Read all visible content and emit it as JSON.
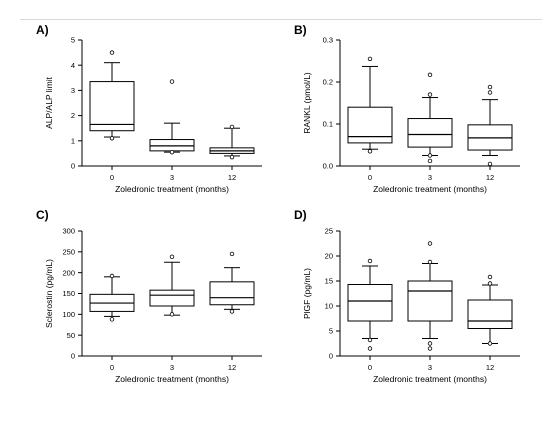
{
  "chart_data": [
    {
      "type": "box",
      "panel": "A)",
      "xlabel": "Zoledronic treatment (months)",
      "ylabel": "ALP/ALP limit",
      "categories": [
        "0",
        "3",
        "12"
      ],
      "ylim": [
        0,
        5
      ],
      "yticks": [
        "0",
        "1",
        "2",
        "3",
        "4",
        "5"
      ],
      "boxes": [
        {
          "whisker_low": 1.15,
          "q1": 1.4,
          "median": 1.65,
          "q3": 3.35,
          "whisker_high": 4.1,
          "outliers": [
            1.1,
            4.5
          ]
        },
        {
          "whisker_low": 0.55,
          "q1": 0.6,
          "median": 0.8,
          "q3": 1.05,
          "whisker_high": 1.7,
          "outliers": [
            0.55,
            3.35
          ]
        },
        {
          "whisker_low": 0.4,
          "q1": 0.5,
          "median": 0.6,
          "q3": 0.72,
          "whisker_high": 1.5,
          "outliers": [
            0.35,
            1.55
          ]
        }
      ]
    },
    {
      "type": "box",
      "panel": "B)",
      "xlabel": "Zoledronic treatment (months)",
      "ylabel": "RANKL (pmol/L)",
      "categories": [
        "0",
        "3",
        "12"
      ],
      "ylim": [
        0,
        0.3
      ],
      "yticks": [
        "0.0",
        "0.1",
        "0.2",
        "0.3"
      ],
      "boxes": [
        {
          "whisker_low": 0.04,
          "q1": 0.055,
          "median": 0.07,
          "q3": 0.14,
          "whisker_high": 0.237,
          "outliers": [
            0.035,
            0.255
          ]
        },
        {
          "whisker_low": 0.025,
          "q1": 0.045,
          "median": 0.075,
          "q3": 0.113,
          "whisker_high": 0.163,
          "outliers": [
            0.012,
            0.025,
            0.17,
            0.217
          ]
        },
        {
          "whisker_low": 0.025,
          "q1": 0.038,
          "median": 0.067,
          "q3": 0.098,
          "whisker_high": 0.158,
          "outliers": [
            0.005,
            0.175,
            0.188
          ]
        }
      ]
    },
    {
      "type": "box",
      "panel": "C)",
      "xlabel": "Zoledronic treatment (months)",
      "ylabel": "Sclerostin (pg/mL)",
      "categories": [
        "0",
        "3",
        "12"
      ],
      "ylim": [
        0,
        300
      ],
      "yticks": [
        "0",
        "50",
        "100",
        "150",
        "200",
        "250",
        "300"
      ],
      "boxes": [
        {
          "whisker_low": 95,
          "q1": 107,
          "median": 127,
          "q3": 148,
          "whisker_high": 190,
          "outliers": [
            88,
            192
          ]
        },
        {
          "whisker_low": 98,
          "q1": 120,
          "median": 146,
          "q3": 158,
          "whisker_high": 225,
          "outliers": [
            100,
            238
          ]
        },
        {
          "whisker_low": 112,
          "q1": 123,
          "median": 140,
          "q3": 178,
          "whisker_high": 212,
          "outliers": [
            107,
            245
          ]
        }
      ]
    },
    {
      "type": "box",
      "panel": "D)",
      "xlabel": "Zoledronic treatment (months)",
      "ylabel": "PlGF (pg/mL)",
      "categories": [
        "0",
        "3",
        "12"
      ],
      "ylim": [
        0,
        25
      ],
      "yticks": [
        "0",
        "5",
        "10",
        "15",
        "20",
        "25"
      ],
      "boxes": [
        {
          "whisker_low": 3.5,
          "q1": 7,
          "median": 11,
          "q3": 14.3,
          "whisker_high": 18,
          "outliers": [
            1.5,
            3.2,
            19
          ]
        },
        {
          "whisker_low": 3.5,
          "q1": 7,
          "median": 13,
          "q3": 15,
          "whisker_high": 18.5,
          "outliers": [
            1.5,
            2.5,
            18.8,
            22.5
          ]
        },
        {
          "whisker_low": 2.5,
          "q1": 5.5,
          "median": 7,
          "q3": 11.2,
          "whisker_high": 14.2,
          "outliers": [
            2.5,
            14.5,
            15.8
          ]
        }
      ]
    }
  ]
}
